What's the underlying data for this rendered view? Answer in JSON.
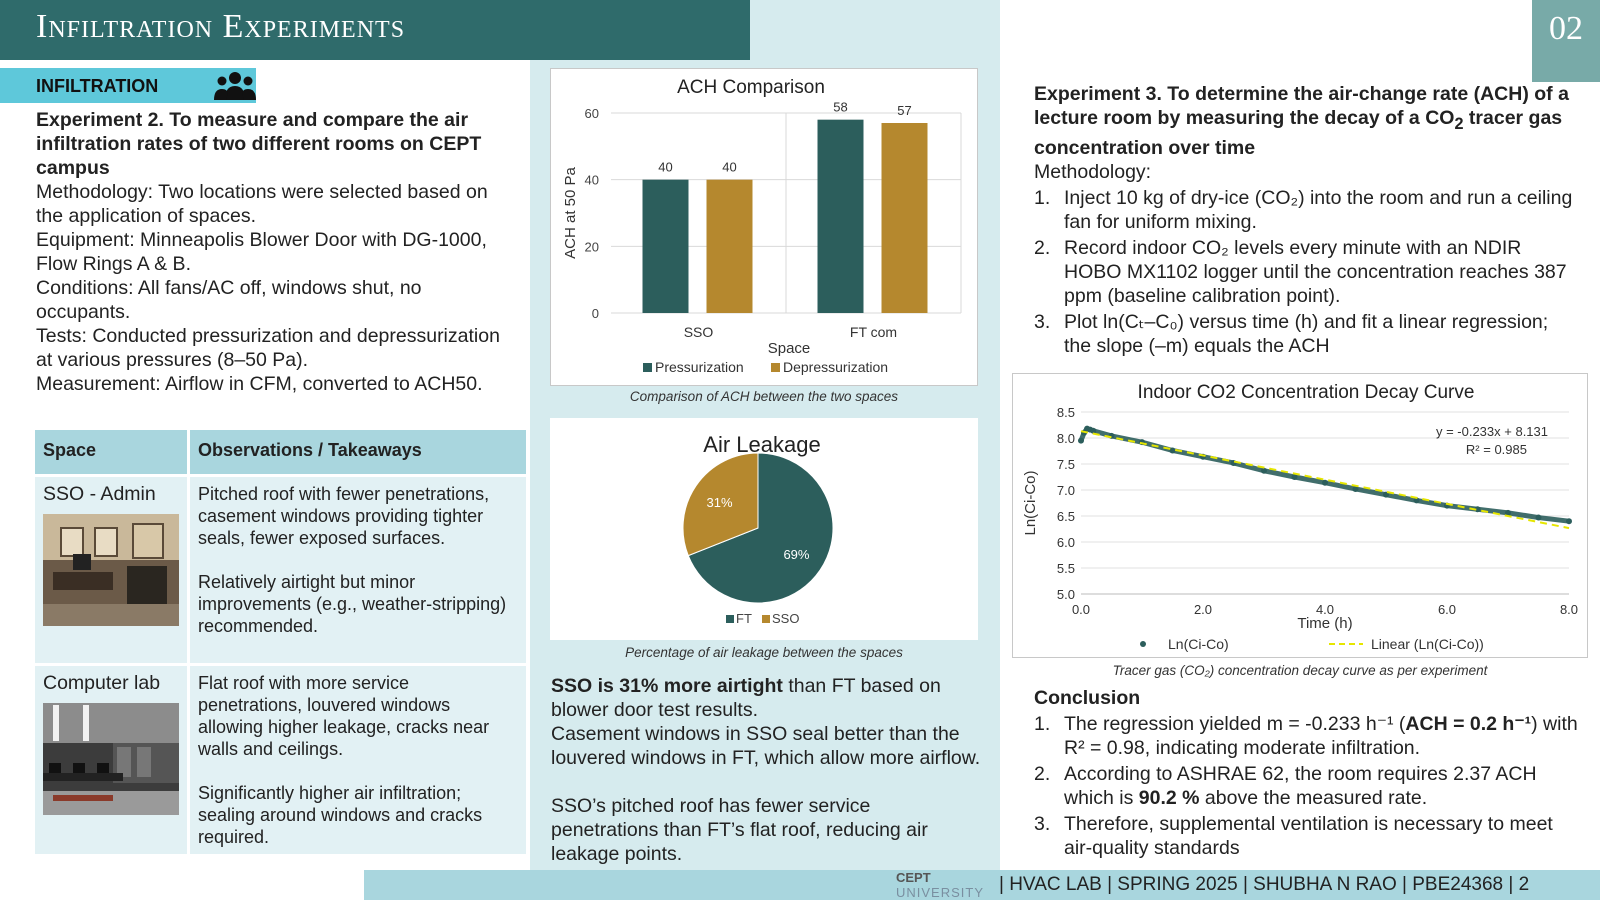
{
  "header": {
    "title": "Infiltration Experiments",
    "page_badge": "02"
  },
  "left": {
    "section_label": "INFILTRATION",
    "exp2_title": "Experiment 2. To measure and compare the air infiltration rates of two different rooms on CEPT campus",
    "methodology": "Methodology: Two locations were selected based on the application of spaces.",
    "equipment": "Equipment: Minneapolis Blower Door with DG-1000, Flow Rings A & B.",
    "conditions": "Conditions: All fans/AC off, windows shut, no occupants.",
    "tests": "Tests: Conducted pressurization and depressurization at various pressures (8–50 Pa).",
    "measurement": "Measurement: Airflow in CFM, converted to ACH50.",
    "table": {
      "headers": [
        "Space",
        "Observations / Takeaways"
      ],
      "rows": [
        {
          "space": "SSO - Admin",
          "obs1": "Pitched roof with fewer penetrations, casement windows providing tighter seals, fewer exposed surfaces.",
          "obs2": "Relatively airtight but minor improvements (e.g., weather-stripping) recommended."
        },
        {
          "space": "Computer lab",
          "obs1": "Flat roof with more service penetrations, louvered windows allowing higher leakage, cracks near walls and ceilings.",
          "obs2": "Significantly higher air infiltration; sealing around windows and cracks required."
        }
      ]
    }
  },
  "middle": {
    "bar_caption": "Comparison of ACH between the two spaces",
    "pie_caption": "Percentage of air leakage between the spaces",
    "summary_bold": "SSO is 31% more airtight",
    "summary_rest": " than FT based on blower door test results.",
    "p2": "Casement windows in SSO seal better than the louvered windows in FT, which allow more airflow.",
    "p3": "SSO’s pitched roof has fewer service penetrations than FT’s flat roof, reducing air leakage points."
  },
  "right": {
    "exp3_title_a": "Experiment 3. To determine the air-change rate (ACH) of a lecture room by measuring the decay of a CO",
    "exp3_title_sub": "2",
    "exp3_title_b": " tracer gas concentration over time",
    "methodology_label": "Methodology:",
    "steps": [
      "Inject 10 kg of dry-ice (CO₂) into the room and run a ceiling fan for uniform mixing.",
      "Record indoor CO₂ levels every minute with an NDIR HOBO MX1102 logger until the concentration reaches 387 ppm (baseline calibration point).",
      "Plot ln(Cₜ–C₀) versus time (h) and fit a linear regression; the slope (–m) equals the ACH"
    ],
    "chart_caption": "Tracer gas (CO₂) concentration decay curve as per experiment",
    "conclusion_label": "Conclusion",
    "c1_a": "The regression yielded m = -0.233 h⁻¹ (",
    "c1_b": "ACH = 0.2 h⁻¹",
    "c1_c": ") with R² = 0.98, indicating moderate infiltration.",
    "c2_a": "According to ASHRAE 62, the room requires 2.37 ACH which is ",
    "c2_b": "90.2 %",
    "c2_c": " above the measured rate.",
    "c3": "Therefore, supplemental ventilation is necessary to meet air-quality standards"
  },
  "footer": {
    "logo_line1": "CEPT",
    "logo_line2": "UNIVERSITY",
    "text": "| HVAC LAB | SPRING 2025 | SHUBHA N RAO | PBE24368 |   2"
  },
  "colors": {
    "dark_teal": "#2c5e5c",
    "gold": "#b5882e",
    "accent_cyan": "#5ec8da"
  },
  "chart_data": [
    {
      "type": "bar",
      "title": "ACH Comparison",
      "categories": [
        "SSO",
        "FT com"
      ],
      "series": [
        {
          "name": "Pressurization",
          "values": [
            40,
            58
          ]
        },
        {
          "name": "Depressurization",
          "values": [
            40,
            57
          ]
        }
      ],
      "xlabel": "Space",
      "ylabel": "ACH at 50 Pa",
      "ylim": [
        0,
        60
      ],
      "yticks": [
        0,
        20,
        40,
        60
      ],
      "legend": "bottom",
      "grid": true
    },
    {
      "type": "pie",
      "title": "Air Leakage",
      "labels": [
        "FT",
        "SSO"
      ],
      "values": [
        69,
        31
      ],
      "value_labels": [
        "69%",
        "31%"
      ],
      "legend": "bottom"
    },
    {
      "type": "scatter",
      "title": "Indoor CO2 Concentration Decay Curve",
      "xlabel": "Time (h)",
      "ylabel": "Ln(Ci-Co)",
      "xlim": [
        0,
        8
      ],
      "ylim": [
        5.0,
        8.5
      ],
      "xticks": [
        "0.0",
        "2.0",
        "4.0",
        "6.0",
        "8.0"
      ],
      "yticks": [
        "5.0",
        "5.5",
        "6.0",
        "6.5",
        "7.0",
        "7.5",
        "8.0",
        "8.5"
      ],
      "series": [
        {
          "name": "Ln(Ci-Co)",
          "x": [
            0.0,
            0.05,
            0.1,
            0.15,
            0.2,
            0.5,
            1.0,
            1.5,
            2.0,
            2.5,
            3.0,
            3.5,
            4.0,
            4.5,
            5.0,
            5.5,
            6.0,
            6.5,
            7.0,
            7.5,
            8.0
          ],
          "y": [
            7.95,
            8.1,
            8.18,
            8.16,
            8.14,
            8.04,
            7.92,
            7.76,
            7.64,
            7.52,
            7.37,
            7.25,
            7.14,
            7.02,
            6.91,
            6.8,
            6.7,
            6.63,
            6.56,
            6.47,
            6.4
          ]
        },
        {
          "name": "Linear (Ln(Ci-Co))",
          "slope": -0.233,
          "intercept": 8.131
        }
      ],
      "annotations": [
        "y = -0.233x + 8.131",
        "R² = 0.985"
      ],
      "legend": "bottom"
    }
  ]
}
